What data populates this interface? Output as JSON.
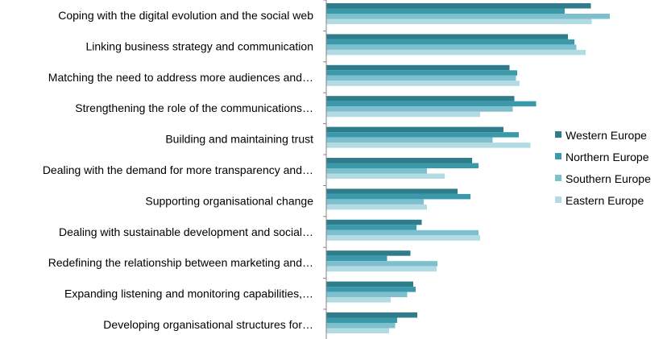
{
  "chart_data": {
    "type": "bar",
    "orientation": "horizontal",
    "categories": [
      "Coping with the digital evolution and the social web",
      "Linking business strategy and communication",
      "Matching the need to address more audiences and…",
      "Strengthening the role of the communications…",
      "Building and maintaining trust",
      "Dealing with the demand for more transparency and…",
      "Supporting organisational change",
      "Dealing with sustainable development and social…",
      "Redefining the relationship between marketing and…",
      "Expanding listening and monitoring capabilities,…",
      "Developing organisational structures for…"
    ],
    "series": [
      {
        "name": "Western Europe",
        "color": "#2f7d8a",
        "values": [
          65.7,
          60.0,
          45.5,
          46.7,
          44.0,
          36.2,
          32.6,
          23.7,
          20.9,
          21.6,
          22.6
        ]
      },
      {
        "name": "Northern Europe",
        "color": "#3a9aac",
        "values": [
          59.2,
          61.6,
          47.4,
          52.1,
          47.8,
          37.8,
          35.8,
          22.4,
          15.1,
          22.2,
          17.6
        ]
      },
      {
        "name": "Southern Europe",
        "color": "#7dbfcc",
        "values": [
          70.4,
          62.1,
          47.1,
          46.3,
          41.3,
          25.0,
          24.2,
          37.8,
          27.6,
          20.1,
          17.1
        ]
      },
      {
        "name": "Eastern Europe",
        "color": "#b3dbe3",
        "values": [
          65.9,
          64.4,
          48.0,
          38.2,
          50.7,
          29.4,
          25.0,
          38.2,
          27.4,
          16.0,
          15.6
        ]
      }
    ],
    "xlim": [
      0,
      85
    ],
    "grid": false,
    "legend_position": "right"
  }
}
